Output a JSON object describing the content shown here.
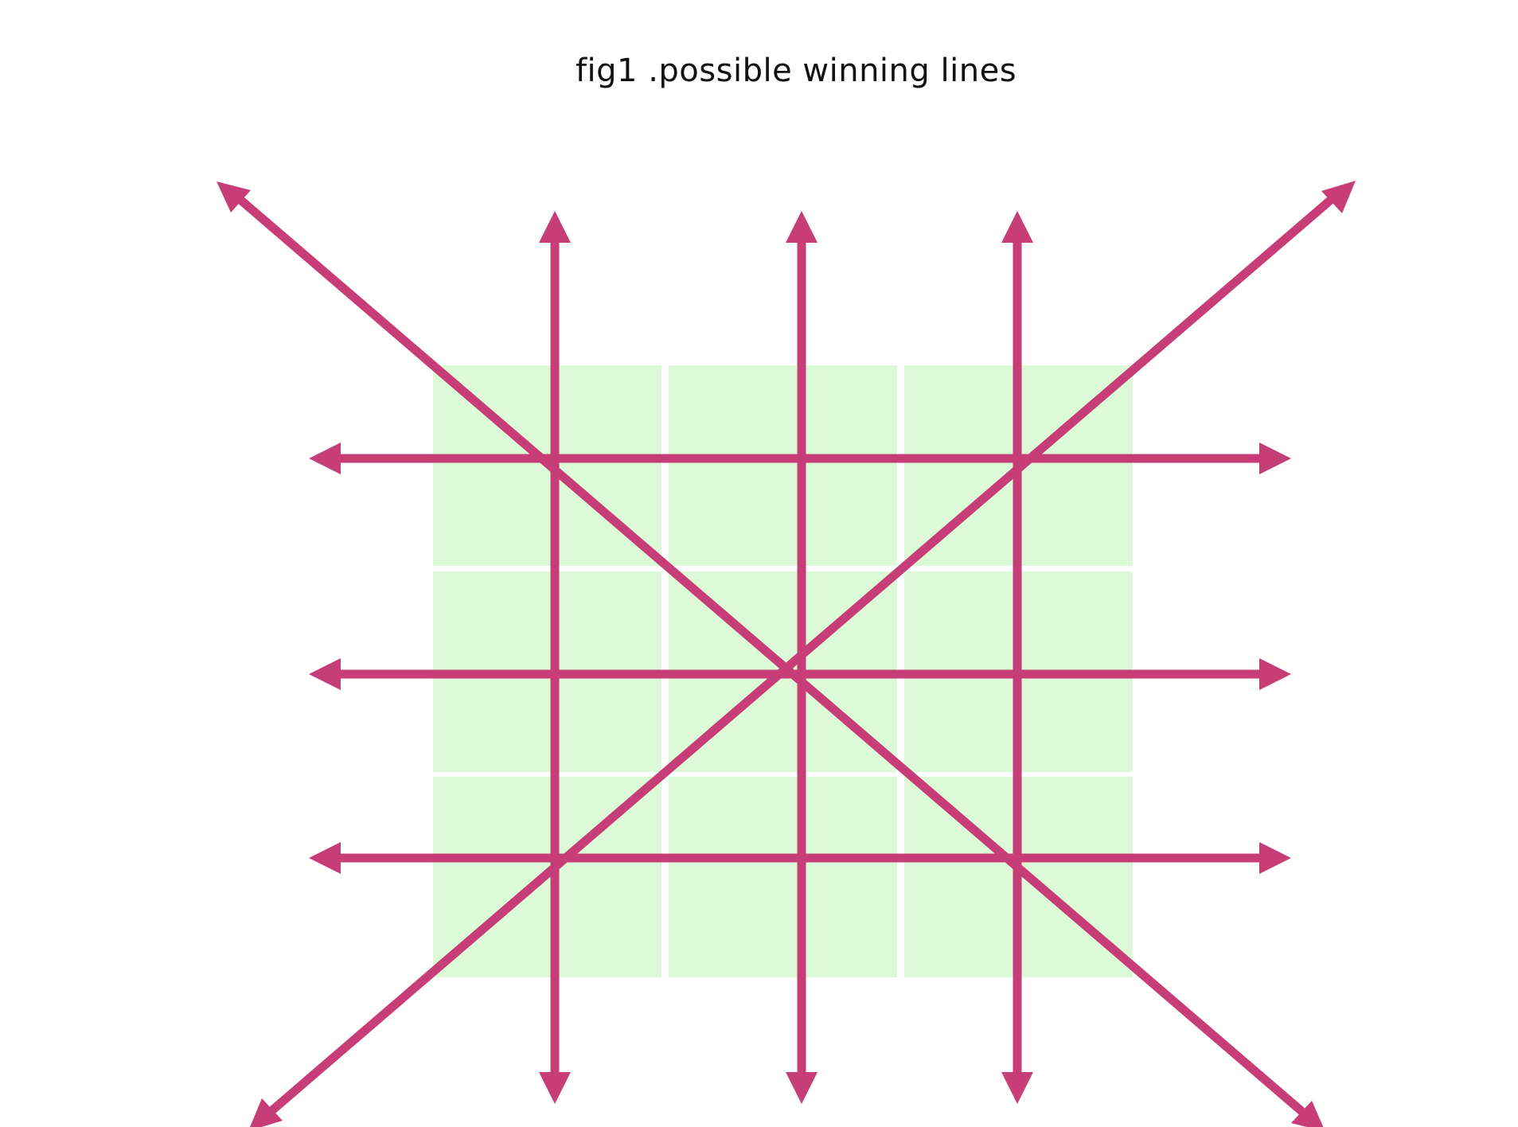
{
  "title": "fig1 .possible winning lines",
  "board": {
    "rows": 3,
    "cols": 3,
    "cell_color": "#dcf9d8",
    "divider_color": "#ffffff"
  },
  "lines": {
    "color": "#c63d78",
    "items": [
      {
        "kind": "row",
        "index": 1
      },
      {
        "kind": "row",
        "index": 2
      },
      {
        "kind": "row",
        "index": 3
      },
      {
        "kind": "column",
        "index": 1
      },
      {
        "kind": "column",
        "index": 2
      },
      {
        "kind": "column",
        "index": 3
      },
      {
        "kind": "diagonal",
        "direction": "top-left-to-bottom-right"
      },
      {
        "kind": "diagonal",
        "direction": "bottom-left-to-top-right"
      }
    ]
  }
}
